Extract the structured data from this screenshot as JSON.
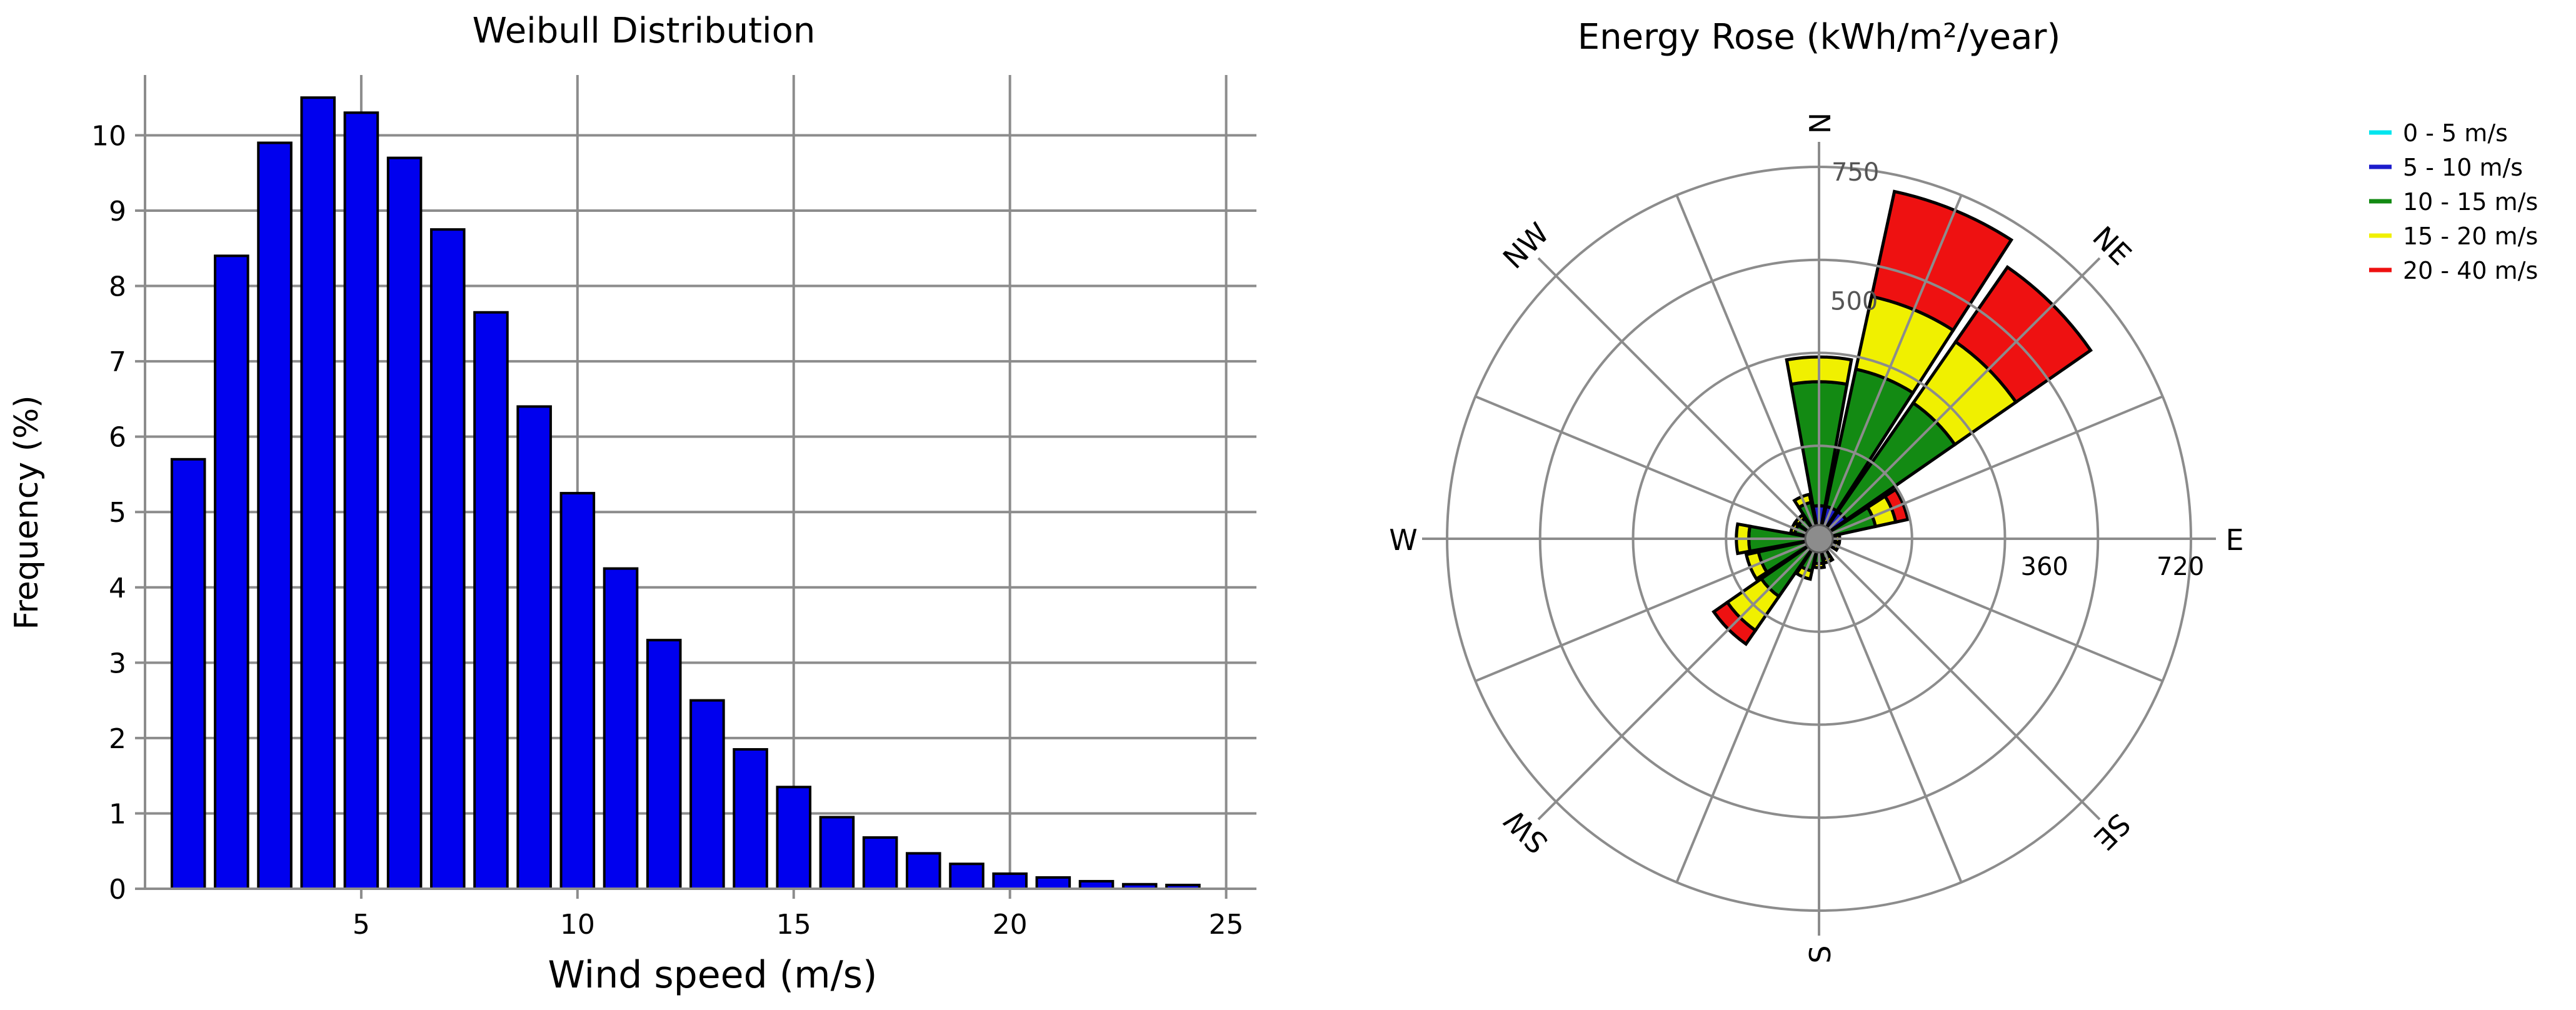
{
  "chart_data": [
    {
      "type": "bar",
      "title": "Weibull Distribution",
      "xlabel": "Wind speed (m/s)",
      "ylabel": "Frequency (%)",
      "xlim": [
        0,
        25.7
      ],
      "ylim": [
        0,
        10.8
      ],
      "x_ticks": [
        5,
        10,
        15,
        20,
        25
      ],
      "y_ticks": [
        0,
        1,
        2,
        3,
        4,
        5,
        6,
        7,
        8,
        9,
        10
      ],
      "grid": true,
      "bar_color": "#0000ee",
      "x": [
        1,
        2,
        3,
        4,
        5,
        6,
        7,
        8,
        9,
        10,
        11,
        12,
        13,
        14,
        15,
        16,
        17,
        18,
        19,
        20,
        21,
        22,
        23,
        24
      ],
      "values": [
        5.7,
        8.4,
        9.9,
        10.5,
        10.3,
        9.7,
        8.75,
        7.65,
        6.4,
        5.25,
        4.25,
        3.3,
        2.5,
        1.85,
        1.35,
        0.95,
        0.68,
        0.47,
        0.33,
        0.2,
        0.15,
        0.1,
        0.06,
        0.05
      ]
    },
    {
      "type": "polar-stacked-bar",
      "title": "Energy Rose (kWh/m²/year)",
      "directions": [
        "N",
        "NE",
        "E",
        "SE",
        "S",
        "SW",
        "W",
        "NW"
      ],
      "radial_ring_labels_top": [
        "750",
        "500"
      ],
      "radial_ring_labels_right": [
        "360",
        "720"
      ],
      "rmax": 900,
      "sector_count": 16,
      "legend_position": "top-right",
      "legend": [
        {
          "label": "0 - 5 m/s",
          "color": "#00e5ee"
        },
        {
          "label": "5 - 10 m/s",
          "color": "#1c1ccc"
        },
        {
          "label": "10 - 15 m/s",
          "color": "#138a13"
        },
        {
          "label": "15 - 20 m/s",
          "color": "#f0f000"
        },
        {
          "label": "20 - 40 m/s",
          "color": "#ee1111"
        }
      ],
      "sectors": [
        {
          "direction_deg": 0,
          "cumulative": [
            10,
            80,
            380,
            440,
            440
          ]
        },
        {
          "direction_deg": 22.5,
          "cumulative": [
            10,
            80,
            420,
            600,
            860
          ]
        },
        {
          "direction_deg": 45,
          "cumulative": [
            10,
            80,
            400,
            580,
            800
          ]
        },
        {
          "direction_deg": 67.5,
          "cumulative": [
            5,
            30,
            140,
            190,
            220
          ]
        },
        {
          "direction_deg": 90,
          "cumulative": [
            5,
            20,
            40,
            50,
            50
          ]
        },
        {
          "direction_deg": 112.5,
          "cumulative": [
            5,
            20,
            40,
            50,
            50
          ]
        },
        {
          "direction_deg": 135,
          "cumulative": [
            3,
            10,
            20,
            25,
            25
          ]
        },
        {
          "direction_deg": 157.5,
          "cumulative": [
            5,
            20,
            50,
            60,
            60
          ]
        },
        {
          "direction_deg": 180,
          "cumulative": [
            5,
            20,
            60,
            70,
            70
          ]
        },
        {
          "direction_deg": 202.5,
          "cumulative": [
            5,
            20,
            80,
            100,
            100
          ]
        },
        {
          "direction_deg": 225,
          "cumulative": [
            5,
            30,
            170,
            270,
            310
          ]
        },
        {
          "direction_deg": 247.5,
          "cumulative": [
            5,
            30,
            150,
            180,
            180
          ]
        },
        {
          "direction_deg": 270,
          "cumulative": [
            5,
            30,
            170,
            200,
            200
          ]
        },
        {
          "direction_deg": 292.5,
          "cumulative": [
            5,
            20,
            60,
            70,
            70
          ]
        },
        {
          "direction_deg": 315,
          "cumulative": [
            5,
            20,
            60,
            70,
            70
          ]
        },
        {
          "direction_deg": 337.5,
          "cumulative": [
            5,
            20,
            90,
            110,
            110
          ]
        }
      ]
    }
  ]
}
